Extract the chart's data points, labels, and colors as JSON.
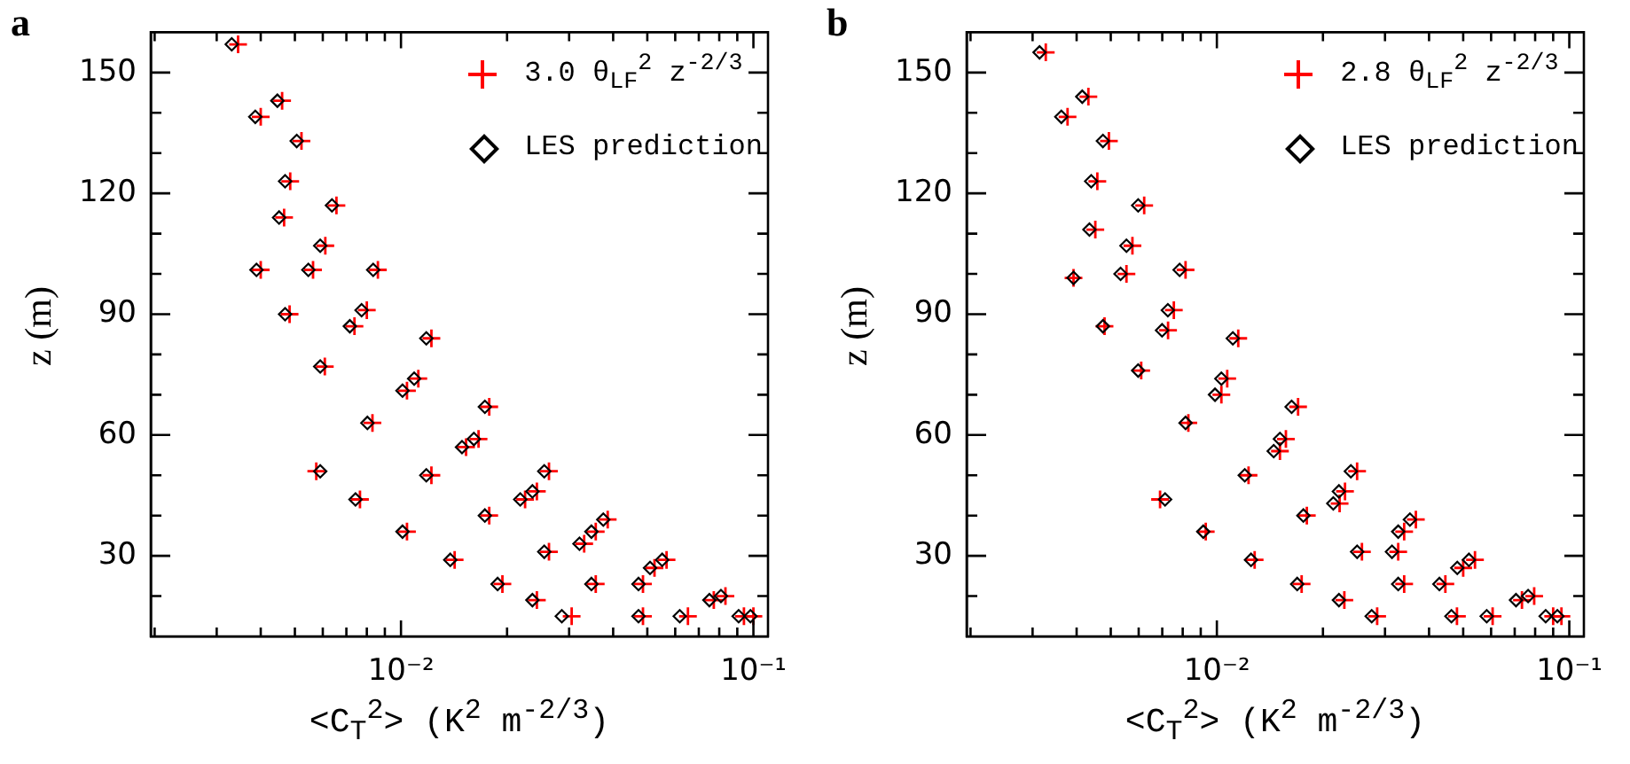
{
  "chart_data": [
    {
      "type": "scatter",
      "title": "a",
      "xlabel": "<C$_{T}$$^{2}$> (K$^{2}$ m$^{-2/3}$)",
      "ylabel": "z (m)",
      "log": "x",
      "legend": "top right",
      "xlim": [
        0.00195,
        0.11
      ],
      "ylim": [
        10,
        160
      ],
      "xticks": [
        {
          "value": 0.002,
          "label": null
        },
        {
          "value": 0.003,
          "label": null
        },
        {
          "value": 0.004,
          "label": null
        },
        {
          "value": 0.005,
          "label": null
        },
        {
          "value": 0.006,
          "label": null
        },
        {
          "value": 0.007,
          "label": null
        },
        {
          "value": 0.008,
          "label": null
        },
        {
          "value": 0.009,
          "label": null
        },
        {
          "value": 0.01,
          "label": "10⁻²"
        },
        {
          "value": 0.02,
          "label": null
        },
        {
          "value": 0.03,
          "label": null
        },
        {
          "value": 0.04,
          "label": null
        },
        {
          "value": 0.05,
          "label": null
        },
        {
          "value": 0.06,
          "label": null
        },
        {
          "value": 0.07,
          "label": null
        },
        {
          "value": 0.08,
          "label": null
        },
        {
          "value": 0.09,
          "label": null
        },
        {
          "value": 0.1,
          "label": "10⁻¹"
        }
      ],
      "yticks": [
        {
          "value": 20,
          "label": null
        },
        30,
        {
          "value": 40,
          "label": null
        },
        {
          "value": 50,
          "label": null
        },
        60,
        {
          "value": 70,
          "label": null
        },
        {
          "value": 80,
          "label": null
        },
        90,
        {
          "value": 100,
          "label": null
        },
        {
          "value": 110,
          "label": null
        },
        120,
        {
          "value": 130,
          "label": null
        },
        {
          "value": 140,
          "label": null
        },
        150
      ],
      "series": [
        {
          "name": "3.0 θ$_{LF}$$^{2}$ z$^{-2/3}$",
          "color": "#ff0000",
          "marker": "cross",
          "x": [
            0.00345,
            0.004,
            0.00485,
            0.0061,
            0.008,
            0.0112,
            0.0166,
            0.0243,
            0.0357,
            0.0524,
            0.0772,
            0.094,
            0.0046,
            0.00522,
            0.00656,
            0.0086,
            0.0122,
            0.0178,
            0.0263,
            0.0386,
            0.0567,
            0.0833,
            0.1,
            0.00466,
            0.00563,
            0.00738,
            0.0104,
            0.0153,
            0.0225,
            0.0331,
            0.0486,
            0.0652,
            0.004,
            0.00483,
            0.00608,
            0.0083,
            0.0122,
            0.0178,
            0.0263,
            0.0357,
            0.0486,
            0.00575,
            0.00765,
            0.0104,
            0.0142,
            0.0194,
            0.0243,
            0.0305
          ],
          "values": [
            157,
            139,
            123,
            107,
            91,
            74,
            59,
            46,
            36,
            27,
            19,
            15,
            143,
            133,
            117,
            101,
            84,
            67,
            51,
            39,
            29,
            20,
            15,
            114,
            101,
            87,
            71,
            57,
            44,
            33,
            23,
            15,
            101,
            90,
            77,
            63,
            50,
            40,
            31,
            23,
            15,
            51,
            44,
            36,
            29,
            23,
            19,
            15
          ]
        },
        {
          "name": "LES prediction",
          "color": "#000000",
          "marker": "diamond",
          "x": [
            0.00331,
            0.00386,
            0.00469,
            0.0059,
            0.00773,
            0.0109,
            0.0161,
            0.0236,
            0.0347,
            0.0509,
            0.075,
            0.0908,
            0.00446,
            0.00506,
            0.00637,
            0.00834,
            0.0118,
            0.0173,
            0.0255,
            0.0375,
            0.0551,
            0.0809,
            0.0981,
            0.00451,
            0.00546,
            0.00716,
            0.0101,
            0.0149,
            0.0218,
            0.0321,
            0.0472,
            0.0618,
            0.00389,
            0.00469,
            0.0059,
            0.00803,
            0.0118,
            0.0173,
            0.0255,
            0.0347,
            0.0472,
            0.0059,
            0.00743,
            0.0101,
            0.0138,
            0.0188,
            0.0236,
            0.0286
          ],
          "values": [
            157,
            139,
            123,
            107,
            91,
            74,
            59,
            46,
            36,
            27,
            19,
            15,
            143,
            133,
            117,
            101,
            84,
            67,
            51,
            39,
            29,
            20,
            15,
            114,
            101,
            87,
            71,
            57,
            44,
            33,
            23,
            15,
            101,
            90,
            77,
            63,
            50,
            40,
            31,
            23,
            15,
            51,
            44,
            36,
            29,
            23,
            19,
            15
          ]
        }
      ]
    },
    {
      "type": "scatter",
      "title": "b",
      "xlabel": "<C$_{T}$$^{2}$> (K$^{2}$ m$^{-2/3}$)",
      "ylabel": "z (m)",
      "log": "x",
      "legend": "top right",
      "xlim": [
        0.00195,
        0.11
      ],
      "ylim": [
        10,
        160
      ],
      "xticks": [
        {
          "value": 0.002,
          "label": null
        },
        {
          "value": 0.003,
          "label": null
        },
        {
          "value": 0.004,
          "label": null
        },
        {
          "value": 0.005,
          "label": null
        },
        {
          "value": 0.006,
          "label": null
        },
        {
          "value": 0.007,
          "label": null
        },
        {
          "value": 0.008,
          "label": null
        },
        {
          "value": 0.009,
          "label": null
        },
        {
          "value": 0.01,
          "label": "10⁻²"
        },
        {
          "value": 0.02,
          "label": null
        },
        {
          "value": 0.03,
          "label": null
        },
        {
          "value": 0.04,
          "label": null
        },
        {
          "value": 0.05,
          "label": null
        },
        {
          "value": 0.06,
          "label": null
        },
        {
          "value": 0.07,
          "label": null
        },
        {
          "value": 0.08,
          "label": null
        },
        {
          "value": 0.09,
          "label": null
        },
        {
          "value": 0.1,
          "label": "10⁻¹"
        }
      ],
      "yticks": [
        {
          "value": 20,
          "label": null
        },
        30,
        {
          "value": 40,
          "label": null
        },
        {
          "value": 50,
          "label": null
        },
        60,
        {
          "value": 70,
          "label": null
        },
        {
          "value": 80,
          "label": null
        },
        90,
        {
          "value": 100,
          "label": null
        },
        {
          "value": 110,
          "label": null
        },
        120,
        {
          "value": 130,
          "label": null
        },
        {
          "value": 140,
          "label": null
        },
        150
      ],
      "series": [
        {
          "name": "2.8 θ$_{LF}$$^{2}$ z$^{-2/3}$",
          "color": "#ff0000",
          "marker": "cross",
          "x": [
            0.00327,
            0.00377,
            0.00458,
            0.00576,
            0.00755,
            0.0107,
            0.0157,
            0.0231,
            0.034,
            0.05,
            0.0734,
            0.09,
            0.00432,
            0.00494,
            0.00622,
            0.00815,
            0.0115,
            0.017,
            0.025,
            0.0367,
            0.054,
            0.0795,
            0.095,
            0.00452,
            0.00554,
            0.00727,
            0.0103,
            0.0151,
            0.0223,
            0.0327,
            0.0445,
            0.0606,
            0.00392,
            0.0048,
            0.0061,
            0.0083,
            0.0123,
            0.018,
            0.0258,
            0.034,
            0.048,
            0.0069,
            0.0093,
            0.0128,
            0.0174,
            0.023,
            0.0285
          ],
          "values": [
            155,
            139,
            123,
            107,
            91,
            74,
            59,
            46,
            36,
            27,
            19,
            15,
            144,
            133,
            117,
            101,
            84,
            67,
            51,
            39,
            29,
            20,
            15,
            111,
            100,
            86,
            70,
            56,
            43,
            31,
            23,
            15,
            99,
            87,
            76,
            63,
            50,
            40,
            31,
            23,
            15,
            44,
            36,
            29,
            23,
            19,
            15
          ]
        },
        {
          "name": "LES prediction",
          "color": "#000000",
          "marker": "diamond",
          "x": [
            0.00314,
            0.00362,
            0.0044,
            0.00554,
            0.00726,
            0.0103,
            0.0151,
            0.0222,
            0.0327,
            0.0481,
            0.0706,
            0.0857,
            0.00415,
            0.00475,
            0.00598,
            0.00784,
            0.0111,
            0.0163,
            0.024,
            0.0353,
            0.0519,
            0.0764,
            0.0925,
            0.00435,
            0.00533,
            0.00699,
            0.00988,
            0.0145,
            0.0214,
            0.0314,
            0.0428,
            0.0583,
            0.00392,
            0.00475,
            0.00598,
            0.00815,
            0.012,
            0.0176,
            0.025,
            0.0327,
            0.0463,
            0.00713,
            0.00915,
            0.0125,
            0.0169,
            0.0222,
            0.0275
          ],
          "values": [
            155,
            139,
            123,
            107,
            91,
            74,
            59,
            46,
            36,
            27,
            19,
            15,
            144,
            133,
            117,
            101,
            84,
            67,
            51,
            39,
            29,
            20,
            15,
            111,
            100,
            86,
            70,
            56,
            43,
            31,
            23,
            15,
            99,
            87,
            76,
            63,
            50,
            40,
            31,
            23,
            15,
            44,
            36,
            29,
            23,
            19,
            15
          ]
        }
      ]
    }
  ]
}
